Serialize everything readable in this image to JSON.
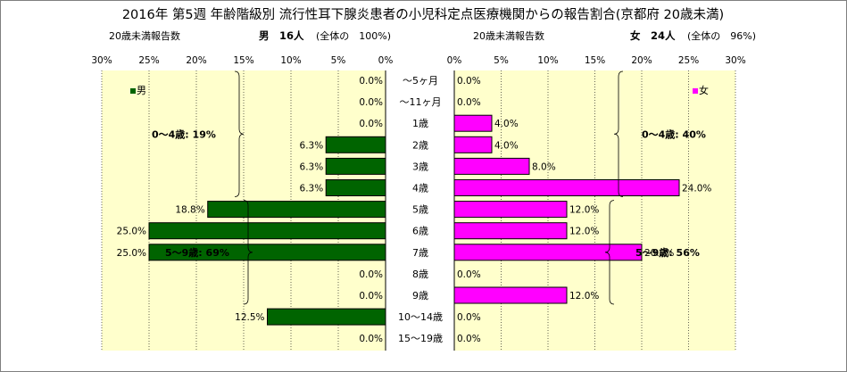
{
  "chart_data": {
    "type": "bar",
    "orientation": "horizontal",
    "layout": "population-pyramid",
    "title": "2016年 第5週 年齢階級別 流行性耳下腺炎患者の小児科定点医療機関からの報告割合(京都府 20歳未満)",
    "categories": [
      "～5ヶ月",
      "～11ヶ月",
      "1歳",
      "2歳",
      "3歳",
      "4歳",
      "5歳",
      "6歳",
      "7歳",
      "8歳",
      "9歳",
      "10～14歳",
      "15～19歳"
    ],
    "axis_unit": "%",
    "xlim": [
      0,
      30
    ],
    "ticks": [
      0,
      5,
      10,
      15,
      20,
      25,
      30
    ],
    "left_panel": {
      "header_label": "20歳未満報告数",
      "header_total": "男　16人",
      "header_share": "(全体の　100%)",
      "legend": "男",
      "color": "#006400",
      "values": [
        0.0,
        0.0,
        0.0,
        6.3,
        6.3,
        6.3,
        18.8,
        25.0,
        25.0,
        0.0,
        0.0,
        12.5,
        0.0
      ],
      "annotations": [
        {
          "text": "0～4歳: 19%",
          "from": 0,
          "to": 5
        },
        {
          "text": "5～9歳: 69%",
          "from": 6,
          "to": 10
        }
      ]
    },
    "right_panel": {
      "header_label": "20歳未満報告数",
      "header_total": "女　24人",
      "header_share": "(全体の　96%)",
      "legend": "女",
      "color": "#ff00ff",
      "values": [
        0.0,
        0.0,
        4.0,
        4.0,
        8.0,
        24.0,
        12.0,
        12.0,
        20.0,
        0.0,
        12.0,
        0.0,
        0.0
      ],
      "annotations": [
        {
          "text": "0～4歳: 40%",
          "from": 0,
          "to": 5
        },
        {
          "text": "5～9歳: 56%",
          "from": 6,
          "to": 10
        }
      ]
    },
    "grid": true
  }
}
